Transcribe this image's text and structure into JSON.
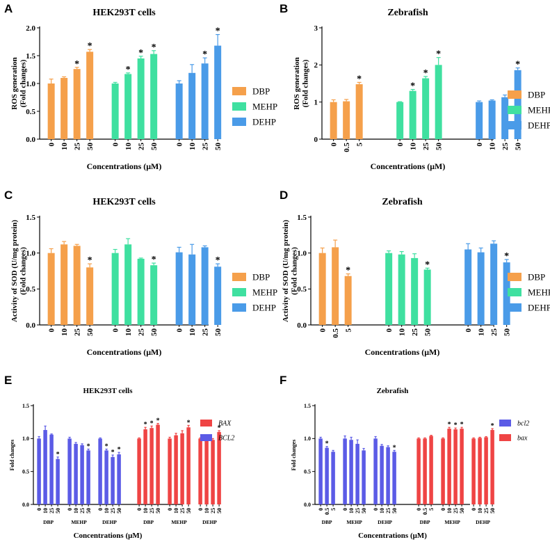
{
  "colors": {
    "DBP": "#f5a04b",
    "MEHP": "#3fe0a0",
    "DEHP": "#4a9be8",
    "BAX": "#ef4444",
    "BCL2": "#5b5be6"
  },
  "chart_data": [
    {
      "panel": "A",
      "type": "bar",
      "title": "HEK293T cells",
      "ylabel": "ROS generation\n(Fold changes)",
      "xlabel": "Concentrations (μM)",
      "ylim": [
        0,
        2.0
      ],
      "yticks": [
        "0.0",
        "0.5",
        "1.0",
        "1.5",
        "2.0"
      ],
      "legend": [
        "DBP",
        "MEHP",
        "DEHP"
      ],
      "groups": [
        {
          "name": "DBP",
          "categories": [
            "0",
            "10",
            "25",
            "50"
          ],
          "values": [
            1.0,
            1.1,
            1.26,
            1.57
          ],
          "errors": [
            0.08,
            0.02,
            0.03,
            0.04
          ],
          "sig": [
            false,
            false,
            true,
            true
          ]
        },
        {
          "name": "MEHP",
          "categories": [
            "0",
            "10",
            "25",
            "50"
          ],
          "values": [
            1.0,
            1.17,
            1.45,
            1.53
          ],
          "errors": [
            0.02,
            0.02,
            0.04,
            0.06
          ],
          "sig": [
            false,
            true,
            true,
            true
          ]
        },
        {
          "name": "DEHP",
          "categories": [
            "0",
            "10",
            "25",
            "50"
          ],
          "values": [
            1.0,
            1.19,
            1.36,
            1.68
          ],
          "errors": [
            0.05,
            0.15,
            0.1,
            0.2
          ],
          "sig": [
            false,
            false,
            true,
            true
          ]
        }
      ]
    },
    {
      "panel": "B",
      "type": "bar",
      "title": "Zebrafish",
      "ylabel": "ROS generation\n(Fold changes)",
      "xlabel": "Concentrations (μM)",
      "ylim": [
        0,
        3
      ],
      "yticks": [
        "0",
        "1",
        "2",
        "3"
      ],
      "legend": [
        "DBP",
        "MEHP",
        "DEHP"
      ],
      "groups": [
        {
          "name": "DBP",
          "categories": [
            "0",
            "0.5",
            "5"
          ],
          "values": [
            1.0,
            1.02,
            1.48
          ],
          "errors": [
            0.06,
            0.05,
            0.05
          ],
          "sig": [
            false,
            false,
            true
          ]
        },
        {
          "name": "MEHP",
          "categories": [
            "0",
            "10",
            "25",
            "50"
          ],
          "values": [
            1.0,
            1.3,
            1.64,
            2.0
          ],
          "errors": [
            0.01,
            0.04,
            0.05,
            0.2
          ],
          "sig": [
            false,
            true,
            true,
            true
          ]
        },
        {
          "name": "DEHP",
          "categories": [
            "0",
            "10",
            "25",
            "50"
          ],
          "values": [
            1.0,
            1.04,
            1.13,
            1.86
          ],
          "errors": [
            0.03,
            0.02,
            0.06,
            0.06
          ],
          "sig": [
            false,
            false,
            false,
            true
          ]
        }
      ]
    },
    {
      "panel": "C",
      "type": "bar",
      "title": "HEK293T cells",
      "ylabel": "Activity of SOD (U/mg protein)\n(Fold changes)",
      "xlabel": "Concentrations (μM)",
      "ylim": [
        0,
        1.5
      ],
      "yticks": [
        "0.0",
        "0.5",
        "1.0",
        "1.5"
      ],
      "legend": [
        "DBP",
        "MEHP",
        "DEHP"
      ],
      "groups": [
        {
          "name": "DBP",
          "categories": [
            "0",
            "10",
            "25",
            "50"
          ],
          "values": [
            1.0,
            1.12,
            1.1,
            0.8
          ],
          "errors": [
            0.06,
            0.04,
            0.02,
            0.05
          ],
          "sig": [
            false,
            false,
            false,
            true
          ]
        },
        {
          "name": "MEHP",
          "categories": [
            "0",
            "10",
            "25",
            "50"
          ],
          "values": [
            1.0,
            1.12,
            0.92,
            0.83
          ],
          "errors": [
            0.05,
            0.08,
            0.01,
            0.03
          ],
          "sig": [
            false,
            false,
            false,
            true
          ]
        },
        {
          "name": "DEHP",
          "categories": [
            "0",
            "10",
            "25",
            "50"
          ],
          "values": [
            1.01,
            0.98,
            1.08,
            0.81
          ],
          "errors": [
            0.07,
            0.14,
            0.02,
            0.04
          ],
          "sig": [
            false,
            false,
            false,
            true
          ]
        }
      ]
    },
    {
      "panel": "D",
      "type": "bar",
      "title": "Zebrafish",
      "ylabel": "Activity of SOD (U/mg protein)\n(Fold changes)",
      "xlabel": "Concentrations (μM)",
      "ylim": [
        0,
        1.5
      ],
      "yticks": [
        "0.0",
        "0.5",
        "1.0",
        "1.5"
      ],
      "legend": [
        "DBP",
        "MEHP",
        "DEHP"
      ],
      "groups": [
        {
          "name": "DBP",
          "categories": [
            "0",
            "0.5",
            "5"
          ],
          "values": [
            1.0,
            1.08,
            0.68
          ],
          "errors": [
            0.07,
            0.1,
            0.03
          ],
          "sig": [
            false,
            false,
            true
          ]
        },
        {
          "name": "MEHP",
          "categories": [
            "0",
            "10",
            "25",
            "50"
          ],
          "values": [
            1.0,
            0.98,
            0.93,
            0.77
          ],
          "errors": [
            0.03,
            0.04,
            0.06,
            0.02
          ],
          "sig": [
            false,
            false,
            false,
            true
          ]
        },
        {
          "name": "DEHP",
          "categories": [
            "0",
            "10",
            "25",
            "50"
          ],
          "values": [
            1.05,
            1.01,
            1.13,
            0.87
          ],
          "errors": [
            0.08,
            0.06,
            0.04,
            0.04
          ],
          "sig": [
            false,
            false,
            false,
            true
          ]
        }
      ]
    },
    {
      "panel": "E",
      "type": "bar",
      "title": "HEK293T cells",
      "ylabel": "Fold changes",
      "xlabel": "Concentrations (μM)",
      "ylim": [
        0,
        1.5
      ],
      "yticks": [
        "0.0",
        "0.5",
        "1.0",
        "1.5"
      ],
      "legend": [
        {
          "name": "BAX",
          "color": "BAX"
        },
        {
          "name": "BCL2",
          "color": "BCL2"
        }
      ],
      "groups": [
        {
          "name": "DBP",
          "color": "BCL2",
          "categories": [
            "0",
            "10",
            "25",
            "50"
          ],
          "values": [
            1.0,
            1.13,
            1.06,
            0.69
          ],
          "errors": [
            0.03,
            0.06,
            0.01,
            0.03
          ],
          "sig": [
            false,
            false,
            false,
            true
          ]
        },
        {
          "name": "MEHP",
          "color": "BCL2",
          "categories": [
            "0",
            "10",
            "25",
            "50"
          ],
          "values": [
            1.0,
            0.92,
            0.9,
            0.82
          ],
          "errors": [
            0.02,
            0.02,
            0.02,
            0.02
          ],
          "sig": [
            false,
            false,
            false,
            true
          ]
        },
        {
          "name": "DEHP",
          "color": "BCL2",
          "categories": [
            "0",
            "10",
            "25",
            "50"
          ],
          "values": [
            1.0,
            0.82,
            0.72,
            0.76
          ],
          "errors": [
            0.01,
            0.02,
            0.03,
            0.03
          ],
          "sig": [
            false,
            true,
            true,
            true
          ]
        },
        {
          "name": "DBP",
          "color": "BAX",
          "categories": [
            "0",
            "10",
            "25",
            "50"
          ],
          "values": [
            1.0,
            1.14,
            1.16,
            1.21
          ],
          "errors": [
            0.01,
            0.03,
            0.03,
            0.02
          ],
          "sig": [
            false,
            true,
            true,
            true
          ]
        },
        {
          "name": "MEHP",
          "color": "BAX",
          "categories": [
            "0",
            "10",
            "25",
            "50"
          ],
          "values": [
            1.0,
            1.05,
            1.08,
            1.17
          ],
          "errors": [
            0.02,
            0.03,
            0.04,
            0.03
          ],
          "sig": [
            false,
            false,
            false,
            true
          ]
        },
        {
          "name": "DEHP",
          "color": "BAX",
          "categories": [
            "0",
            "10",
            "25",
            "50"
          ],
          "values": [
            1.0,
            0.99,
            0.98,
            1.1
          ],
          "errors": [
            0.01,
            0.02,
            0.02,
            0.02
          ],
          "sig": [
            false,
            false,
            false,
            true
          ]
        }
      ]
    },
    {
      "panel": "F",
      "type": "bar",
      "title": "Zebrafish",
      "ylabel": "Fold changes",
      "xlabel": "Concentrations (μM)",
      "ylim": [
        0,
        1.5
      ],
      "yticks": [
        "0.0",
        "0.5",
        "1.0",
        "1.5"
      ],
      "legend": [
        {
          "name": "bcl2",
          "color": "BCL2"
        },
        {
          "name": "bax",
          "color": "BAX"
        }
      ],
      "groups": [
        {
          "name": "DBP",
          "color": "BCL2",
          "categories": [
            "0",
            "0.5",
            "5"
          ],
          "values": [
            1.0,
            0.86,
            0.8
          ],
          "errors": [
            0.02,
            0.02,
            0.02
          ],
          "sig": [
            false,
            true,
            false
          ]
        },
        {
          "name": "MEHP",
          "color": "BCL2",
          "categories": [
            "0",
            "10",
            "25",
            "50"
          ],
          "values": [
            1.0,
            0.98,
            0.92,
            0.82
          ],
          "errors": [
            0.04,
            0.04,
            0.06,
            0.03
          ],
          "sig": [
            false,
            false,
            false,
            false
          ]
        },
        {
          "name": "DEHP",
          "color": "BCL2",
          "categories": [
            "0",
            "10",
            "25",
            "50"
          ],
          "values": [
            1.0,
            0.89,
            0.87,
            0.8
          ],
          "errors": [
            0.03,
            0.02,
            0.02,
            0.02
          ],
          "sig": [
            false,
            false,
            false,
            true
          ]
        },
        {
          "name": "DBP",
          "color": "BAX",
          "categories": [
            "0",
            "0.5",
            "5"
          ],
          "values": [
            1.0,
            1.0,
            1.04
          ],
          "errors": [
            0.01,
            0.01,
            0.01
          ],
          "sig": [
            false,
            false,
            false
          ]
        },
        {
          "name": "MEHP",
          "color": "BAX",
          "categories": [
            "0",
            "10",
            "25",
            "50"
          ],
          "values": [
            1.0,
            1.15,
            1.14,
            1.15
          ],
          "errors": [
            0.01,
            0.02,
            0.02,
            0.02
          ],
          "sig": [
            false,
            true,
            true,
            true
          ]
        },
        {
          "name": "DEHP",
          "color": "BAX",
          "categories": [
            "0",
            "10",
            "25",
            "50"
          ],
          "values": [
            1.0,
            1.01,
            1.02,
            1.13
          ],
          "errors": [
            0.01,
            0.01,
            0.01,
            0.02
          ],
          "sig": [
            false,
            false,
            false,
            true
          ]
        }
      ]
    }
  ]
}
